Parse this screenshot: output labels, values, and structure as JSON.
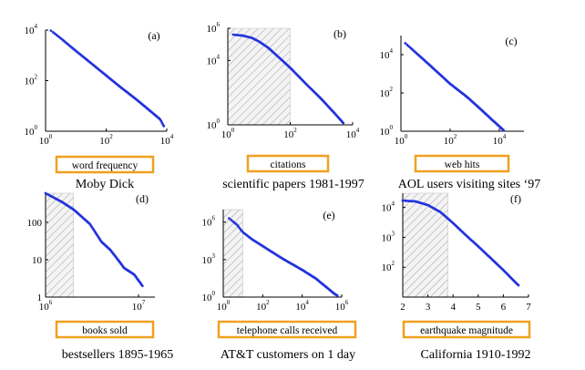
{
  "colors": {
    "data": "#2233dd",
    "label_box": "#f0a020",
    "axis": "#000000",
    "hatch": "#bbbbbb"
  },
  "chart_data": [
    {
      "type": "scatter",
      "panel_label": "(a)",
      "xlabel": "word frequency",
      "caption": "Moby Dick",
      "log_x": true,
      "log_y": true,
      "xlim": [
        1,
        10000
      ],
      "ylim": [
        1,
        10000
      ],
      "x_ticks": [
        {
          "value": 1,
          "base": "10",
          "exp": "0"
        },
        {
          "value": 100,
          "base": "10",
          "exp": "2"
        },
        {
          "value": 10000,
          "base": "10",
          "exp": "4"
        }
      ],
      "y_ticks": [
        {
          "value": 1,
          "base": "10",
          "exp": "0"
        },
        {
          "value": 100,
          "base": "10",
          "exp": "2"
        },
        {
          "value": 10000,
          "base": "10",
          "exp": "4"
        }
      ],
      "shaded_region": null,
      "curve": [
        [
          1.5,
          9500
        ],
        [
          3,
          5000
        ],
        [
          10,
          1500
        ],
        [
          30,
          520
        ],
        [
          100,
          160
        ],
        [
          300,
          55
        ],
        [
          1000,
          18
        ],
        [
          3000,
          6
        ],
        [
          6000,
          3
        ],
        [
          8000,
          1.6
        ]
      ]
    },
    {
      "type": "scatter",
      "panel_label": "(b)",
      "xlabel": "citations",
      "caption": "scientific papers 1981-1997",
      "log_x": true,
      "log_y": true,
      "xlim": [
        1,
        10000
      ],
      "ylim": [
        1,
        1000000
      ],
      "x_ticks": [
        {
          "value": 1,
          "base": "10",
          "exp": "0"
        },
        {
          "value": 100,
          "base": "10",
          "exp": "2"
        },
        {
          "value": 10000,
          "base": "10",
          "exp": "4"
        }
      ],
      "y_ticks": [
        {
          "value": 1,
          "base": "10",
          "exp": "0"
        },
        {
          "value": 10000,
          "base": "10",
          "exp": "4"
        },
        {
          "value": 1000000,
          "base": "10",
          "exp": "6"
        }
      ],
      "shaded_region": [
        1,
        100
      ],
      "curve": [
        [
          1.5,
          400000
        ],
        [
          3,
          350000
        ],
        [
          6,
          250000
        ],
        [
          10,
          150000
        ],
        [
          20,
          60000
        ],
        [
          50,
          12000
        ],
        [
          100,
          3500
        ],
        [
          300,
          400
        ],
        [
          1000,
          40
        ],
        [
          3000,
          4
        ],
        [
          5000,
          1.3
        ]
      ]
    },
    {
      "type": "scatter",
      "panel_label": "(c)",
      "xlabel": "web hits",
      "caption": "AOL users visiting sites ‘97",
      "log_x": true,
      "log_y": true,
      "xlim": [
        1,
        100000
      ],
      "ylim": [
        1,
        100000
      ],
      "x_ticks": [
        {
          "value": 1,
          "base": "10",
          "exp": "0"
        },
        {
          "value": 100,
          "base": "10",
          "exp": "2"
        },
        {
          "value": 10000,
          "base": "10",
          "exp": "4"
        }
      ],
      "y_ticks": [
        {
          "value": 1,
          "base": "10",
          "exp": "0"
        },
        {
          "value": 100,
          "base": "10",
          "exp": "2"
        },
        {
          "value": 10000,
          "base": "10",
          "exp": "4"
        }
      ],
      "shaded_region": null,
      "curve": [
        [
          1.5,
          40000
        ],
        [
          5,
          10000
        ],
        [
          20,
          2000
        ],
        [
          100,
          300
        ],
        [
          500,
          60
        ],
        [
          2000,
          12
        ],
        [
          5000,
          4
        ],
        [
          10000,
          1.8
        ],
        [
          15000,
          1.1
        ]
      ]
    },
    {
      "type": "scatter",
      "panel_label": "(d)",
      "xlabel": "books sold",
      "caption": "bestsellers 1895-1965",
      "log_x": true,
      "log_y": true,
      "xlim": [
        1000000,
        15000000
      ],
      "ylim": [
        1,
        600
      ],
      "x_ticks": [
        {
          "value": 1000000,
          "base": "10",
          "exp": "6"
        },
        {
          "value": 10000000,
          "base": "10",
          "exp": "7"
        }
      ],
      "y_ticks": [
        {
          "value": 1,
          "base": "1",
          "exp": ""
        },
        {
          "value": 10,
          "base": "10",
          "exp": ""
        },
        {
          "value": 100,
          "base": "100",
          "exp": ""
        }
      ],
      "shaded_region": [
        1000000,
        2000000
      ],
      "curve": [
        [
          1000000,
          600
        ],
        [
          1500000,
          350
        ],
        [
          2000000,
          220
        ],
        [
          3000000,
          90
        ],
        [
          4000000,
          30
        ],
        [
          5000000,
          18
        ],
        [
          6000000,
          10
        ],
        [
          7000000,
          6
        ],
        [
          9000000,
          4
        ],
        [
          11000000,
          2
        ]
      ]
    },
    {
      "type": "scatter",
      "panel_label": "(e)",
      "xlabel": "telephone calls received",
      "caption": "AT&T customers on 1 day",
      "log_x": true,
      "log_y": true,
      "xlim": [
        1,
        1000000
      ],
      "ylim": [
        1,
        10000000
      ],
      "x_ticks": [
        {
          "value": 1,
          "base": "10",
          "exp": "0"
        },
        {
          "value": 100,
          "base": "10",
          "exp": "2"
        },
        {
          "value": 10000,
          "base": "10",
          "exp": "4"
        },
        {
          "value": 1000000,
          "base": "10",
          "exp": "6"
        }
      ],
      "y_ticks": [
        {
          "value": 1,
          "base": "10",
          "exp": "0"
        },
        {
          "value": 1000,
          "base": "10",
          "exp": "3"
        },
        {
          "value": 1000000,
          "base": "10",
          "exp": "6"
        }
      ],
      "shaded_region": [
        1,
        10
      ],
      "curve": [
        [
          2,
          2000000
        ],
        [
          5,
          600000
        ],
        [
          10,
          150000
        ],
        [
          30,
          40000
        ],
        [
          100,
          12000
        ],
        [
          1000,
          1200
        ],
        [
          10000,
          150
        ],
        [
          50000,
          30
        ],
        [
          100000,
          12
        ],
        [
          200000,
          5
        ],
        [
          400000,
          2
        ],
        [
          600000,
          1.3
        ]
      ]
    },
    {
      "type": "scatter",
      "panel_label": "(f)",
      "xlabel": "earthquake magnitude",
      "caption": "California 1910-1992",
      "log_x": false,
      "log_y": true,
      "xlim": [
        2,
        7
      ],
      "ylim": [
        10,
        30000
      ],
      "x_ticks": [
        {
          "value": 2,
          "base": "2",
          "exp": ""
        },
        {
          "value": 3,
          "base": "3",
          "exp": ""
        },
        {
          "value": 4,
          "base": "4",
          "exp": ""
        },
        {
          "value": 5,
          "base": "5",
          "exp": ""
        },
        {
          "value": 6,
          "base": "6",
          "exp": ""
        },
        {
          "value": 7,
          "base": "7",
          "exp": ""
        }
      ],
      "y_ticks": [
        {
          "value": 100,
          "base": "10",
          "exp": "2"
        },
        {
          "value": 1000,
          "base": "10",
          "exp": "3"
        },
        {
          "value": 10000,
          "base": "10",
          "exp": "4"
        }
      ],
      "shaded_region": [
        2,
        3.8
      ],
      "curve": [
        [
          2.0,
          17000
        ],
        [
          2.5,
          16000
        ],
        [
          3.0,
          12000
        ],
        [
          3.5,
          7000
        ],
        [
          4.0,
          3000
        ],
        [
          4.5,
          1200
        ],
        [
          5.0,
          500
        ],
        [
          5.5,
          200
        ],
        [
          6.0,
          80
        ],
        [
          6.5,
          30
        ],
        [
          6.6,
          25
        ]
      ]
    }
  ]
}
